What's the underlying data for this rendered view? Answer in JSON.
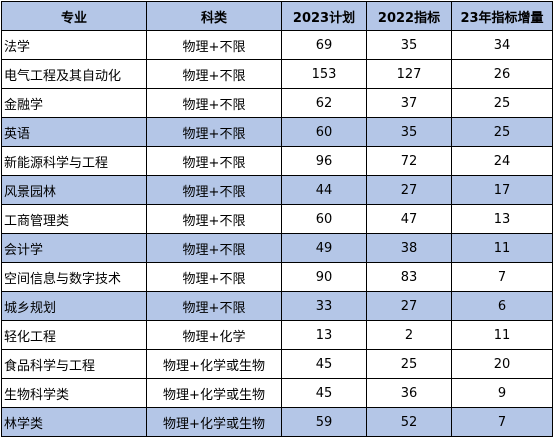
{
  "table": {
    "headers": [
      "专业",
      "科类",
      "2023计划",
      "2022指标",
      "23年指标增量"
    ],
    "rows": [
      [
        "法学",
        "物理+不限",
        "69",
        "35",
        "34"
      ],
      [
        "电气工程及其自动化",
        "物理+不限",
        "153",
        "127",
        "26"
      ],
      [
        "金融学",
        "物理+不限",
        "62",
        "37",
        "25"
      ],
      [
        "英语",
        "物理+不限",
        "60",
        "35",
        "25"
      ],
      [
        "新能源科学与工程",
        "物理+不限",
        "96",
        "72",
        "24"
      ],
      [
        "风景园林",
        "物理+不限",
        "44",
        "27",
        "17"
      ],
      [
        "工商管理类",
        "物理+不限",
        "60",
        "47",
        "13"
      ],
      [
        "会计学",
        "物理+不限",
        "49",
        "38",
        "11"
      ],
      [
        "空间信息与数字技术",
        "物理+不限",
        "90",
        "83",
        "7"
      ],
      [
        "城乡规划",
        "物理+不限",
        "33",
        "27",
        "6"
      ],
      [
        "轻化工程",
        "物理+化学",
        "13",
        "2",
        "11"
      ],
      [
        "食品科学与工程",
        "物理+化学或生物",
        "45",
        "25",
        "20"
      ],
      [
        "生物科学类",
        "物理+化学或生物",
        "45",
        "36",
        "9"
      ],
      [
        "林学类",
        "物理+化学或生物",
        "59",
        "52",
        "7"
      ]
    ]
  },
  "colors": {
    "header_bg": "#b4c6e7",
    "shaded_row_bg": "#b4c6e7",
    "border": "#000000"
  }
}
